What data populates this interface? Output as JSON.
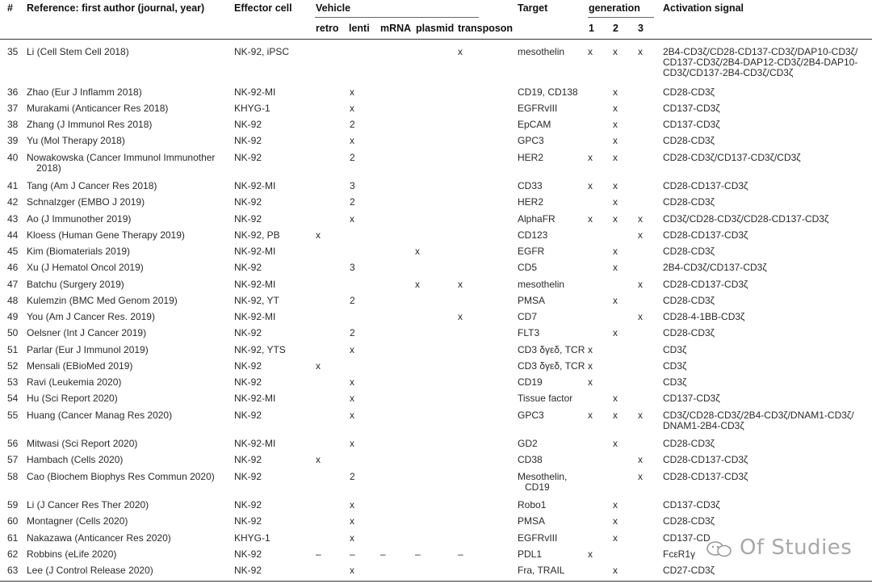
{
  "headers": {
    "num": "#",
    "reference": "Reference: first author (journal, year)",
    "effector": "Effector cell",
    "vehicle": "Vehicle",
    "target": "Target",
    "generation": "generation",
    "activation": "Activation signal",
    "vehicle_sub": [
      "retro",
      "lenti",
      "mRNA",
      "plasmid",
      "transposon"
    ],
    "generation_sub": [
      "1",
      "2",
      "3"
    ]
  },
  "rows": [
    {
      "n": "35",
      "ref": "Li (Cell Stem Cell 2018)",
      "eff": "NK-92, iPSC",
      "retro": "",
      "lenti": "",
      "mrna": "",
      "plasmid": "",
      "transposon": "x",
      "target": "mesothelin",
      "g1": "x",
      "g2": "x",
      "g3": "x",
      "act": "2B4-CD3ζ/CD28-CD137-CD3ζ/DAP10-CD3ζ/ CD137-CD3ζ/2B4-DAP12-CD3ζ/2B4-DAP10- CD3ζ/CD137-2B4-CD3ζ/CD3ζ"
    },
    {
      "n": "36",
      "ref": "Zhao (Eur J Inflamm 2018)",
      "eff": "NK-92-MI",
      "retro": "",
      "lenti": "x",
      "mrna": "",
      "plasmid": "",
      "transposon": "",
      "target": "CD19, CD138",
      "g1": "",
      "g2": "x",
      "g3": "",
      "act": "CD28-CD3ζ"
    },
    {
      "n": "37",
      "ref": "Murakami (Anticancer Res 2018)",
      "eff": "KHYG-1",
      "retro": "",
      "lenti": "x",
      "mrna": "",
      "plasmid": "",
      "transposon": "",
      "target": "EGFRvIII",
      "g1": "",
      "g2": "x",
      "g3": "",
      "act": "CD137-CD3ζ"
    },
    {
      "n": "38",
      "ref": "Zhang (J Immunol Res 2018)",
      "eff": "NK-92",
      "retro": "",
      "lenti": "2",
      "mrna": "",
      "plasmid": "",
      "transposon": "",
      "target": "EpCAM",
      "g1": "",
      "g2": "x",
      "g3": "",
      "act": "CD137-CD3ζ"
    },
    {
      "n": "39",
      "ref": "Yu (Mol Therapy 2018)",
      "eff": "NK-92",
      "retro": "",
      "lenti": "x",
      "mrna": "",
      "plasmid": "",
      "transposon": "",
      "target": "GPC3",
      "g1": "",
      "g2": "x",
      "g3": "",
      "act": "CD28-CD3ζ"
    },
    {
      "n": "40",
      "ref": "Nowakowska (Cancer Immunol Immunother 2018)",
      "eff": "NK-92",
      "retro": "",
      "lenti": "2",
      "mrna": "",
      "plasmid": "",
      "transposon": "",
      "target": "HER2",
      "g1": "x",
      "g2": "x",
      "g3": "",
      "act": "CD28-CD3ζ/CD137-CD3ζ/CD3ζ"
    },
    {
      "n": "41",
      "ref": "Tang (Am J Cancer Res 2018)",
      "eff": "NK-92-MI",
      "retro": "",
      "lenti": "3",
      "mrna": "",
      "plasmid": "",
      "transposon": "",
      "target": "CD33",
      "g1": "x",
      "g2": "x",
      "g3": "",
      "act": "CD28-CD137-CD3ζ"
    },
    {
      "n": "42",
      "ref": "Schnalzger (EMBO J 2019)",
      "eff": "NK-92",
      "retro": "",
      "lenti": "2",
      "mrna": "",
      "plasmid": "",
      "transposon": "",
      "target": "HER2",
      "g1": "",
      "g2": "x",
      "g3": "",
      "act": "CD28-CD3ζ"
    },
    {
      "n": "43",
      "ref": "Ao (J Immunother 2019)",
      "eff": "NK-92",
      "retro": "",
      "lenti": "x",
      "mrna": "",
      "plasmid": "",
      "transposon": "",
      "target": "AlphaFR",
      "g1": "x",
      "g2": "x",
      "g3": "x",
      "act": "CD3ζ/CD28-CD3ζ/CD28-CD137-CD3ζ"
    },
    {
      "n": "44",
      "ref": "Kloess (Human Gene Therapy 2019)",
      "eff": "NK-92, PB",
      "retro": "x",
      "lenti": "",
      "mrna": "",
      "plasmid": "",
      "transposon": "",
      "target": "CD123",
      "g1": "",
      "g2": "",
      "g3": "x",
      "act": "CD28-CD137-CD3ζ"
    },
    {
      "n": "45",
      "ref": "Kim (Biomaterials 2019)",
      "eff": "NK-92-MI",
      "retro": "",
      "lenti": "",
      "mrna": "",
      "plasmid": "x",
      "transposon": "",
      "target": "EGFR",
      "g1": "",
      "g2": "x",
      "g3": "",
      "act": "CD28-CD3ζ"
    },
    {
      "n": "46",
      "ref": "Xu (J Hematol Oncol 2019)",
      "eff": "NK-92",
      "retro": "",
      "lenti": "3",
      "mrna": "",
      "plasmid": "",
      "transposon": "",
      "target": "CD5",
      "g1": "",
      "g2": "x",
      "g3": "",
      "act": "2B4-CD3ζ/CD137-CD3ζ"
    },
    {
      "n": "47",
      "ref": "Batchu (Surgery 2019)",
      "eff": "NK-92-MI",
      "retro": "",
      "lenti": "",
      "mrna": "",
      "plasmid": "x",
      "transposon": "x",
      "target": "mesothelin",
      "g1": "",
      "g2": "",
      "g3": "x",
      "act": "CD28-CD137-CD3ζ"
    },
    {
      "n": "48",
      "ref": "Kulemzin (BMC Med Genom 2019)",
      "eff": "NK-92, YT",
      "retro": "",
      "lenti": "2",
      "mrna": "",
      "plasmid": "",
      "transposon": "",
      "target": "PMSA",
      "g1": "",
      "g2": "x",
      "g3": "",
      "act": "CD28-CD3ζ"
    },
    {
      "n": "49",
      "ref": "You (Am J Cancer Res. 2019)",
      "eff": "NK-92-MI",
      "retro": "",
      "lenti": "",
      "mrna": "",
      "plasmid": "",
      "transposon": "x",
      "target": "CD7",
      "g1": "",
      "g2": "",
      "g3": "x",
      "act": "CD28-4-1BB-CD3ζ"
    },
    {
      "n": "50",
      "ref": "Oelsner (Int J Cancer 2019)",
      "eff": "NK-92",
      "retro": "",
      "lenti": "2",
      "mrna": "",
      "plasmid": "",
      "transposon": "",
      "target": "FLT3",
      "g1": "",
      "g2": "x",
      "g3": "",
      "act": "CD28-CD3ζ"
    },
    {
      "n": "51",
      "ref": "Parlar (Eur J Immunol 2019)",
      "eff": "NK-92, YTS",
      "retro": "",
      "lenti": "x",
      "mrna": "",
      "plasmid": "",
      "transposon": "",
      "target": "CD3 δγεδ, TCR",
      "g1": "x",
      "g2": "",
      "g3": "",
      "act": "CD3ζ"
    },
    {
      "n": "52",
      "ref": "Mensali (EBioMed 2019)",
      "eff": "NK-92",
      "retro": "x",
      "lenti": "",
      "mrna": "",
      "plasmid": "",
      "transposon": "",
      "target": "CD3 δγεδ, TCR",
      "g1": "x",
      "g2": "",
      "g3": "",
      "act": "CD3ζ"
    },
    {
      "n": "53",
      "ref": "Ravi (Leukemia 2020)",
      "eff": "NK-92",
      "retro": "",
      "lenti": "x",
      "mrna": "",
      "plasmid": "",
      "transposon": "",
      "target": "CD19",
      "g1": "x",
      "g2": "",
      "g3": "",
      "act": "CD3ζ"
    },
    {
      "n": "54",
      "ref": "Hu (Sci Report 2020)",
      "eff": "NK-92-MI",
      "retro": "",
      "lenti": "x",
      "mrna": "",
      "plasmid": "",
      "transposon": "",
      "target": "Tissue factor",
      "g1": "",
      "g2": "x",
      "g3": "",
      "act": "CD137-CD3ζ"
    },
    {
      "n": "55",
      "ref": "Huang (Cancer Manag Res 2020)",
      "eff": "NK-92",
      "retro": "",
      "lenti": "x",
      "mrna": "",
      "plasmid": "",
      "transposon": "",
      "target": "GPC3",
      "g1": "x",
      "g2": "x",
      "g3": "x",
      "act": "CD3ζ/CD28-CD3ζ/2B4-CD3ζ/DNAM1-CD3ζ/ DNAM1-2B4-CD3ζ"
    },
    {
      "n": "56",
      "ref": "Mitwasi (Sci Report 2020)",
      "eff": "NK-92-MI",
      "retro": "",
      "lenti": "x",
      "mrna": "",
      "plasmid": "",
      "transposon": "",
      "target": "GD2",
      "g1": "",
      "g2": "x",
      "g3": "",
      "act": "CD28-CD3ζ"
    },
    {
      "n": "57",
      "ref": "Hambach (Cells 2020)",
      "eff": "NK-92",
      "retro": "x",
      "lenti": "",
      "mrna": "",
      "plasmid": "",
      "transposon": "",
      "target": "CD38",
      "g1": "",
      "g2": "",
      "g3": "x",
      "act": "CD28-CD137-CD3ζ"
    },
    {
      "n": "58",
      "ref": "Cao (Biochem Biophys Res Commun 2020)",
      "eff": "NK-92",
      "retro": "",
      "lenti": "2",
      "mrna": "",
      "plasmid": "",
      "transposon": "",
      "target": "Mesothelin, CD19",
      "g1": "",
      "g2": "",
      "g3": "x",
      "act": "CD28-CD137-CD3ζ"
    },
    {
      "n": "59",
      "ref": "Li (J Cancer Res Ther 2020)",
      "eff": "NK-92",
      "retro": "",
      "lenti": "x",
      "mrna": "",
      "plasmid": "",
      "transposon": "",
      "target": "Robo1",
      "g1": "",
      "g2": "x",
      "g3": "",
      "act": "CD137-CD3ζ"
    },
    {
      "n": "60",
      "ref": "Montagner (Cells 2020)",
      "eff": "NK-92",
      "retro": "",
      "lenti": "x",
      "mrna": "",
      "plasmid": "",
      "transposon": "",
      "target": "PMSA",
      "g1": "",
      "g2": "x",
      "g3": "",
      "act": "CD28-CD3ζ"
    },
    {
      "n": "61",
      "ref": "Nakazawa (Anticancer Res 2020)",
      "eff": "KHYG-1",
      "retro": "",
      "lenti": "x",
      "mrna": "",
      "plasmid": "",
      "transposon": "",
      "target": "EGFRvIII",
      "g1": "",
      "g2": "x",
      "g3": "",
      "act": "CD137-CD"
    },
    {
      "n": "62",
      "ref": "Robbins (eLife 2020)",
      "eff": "NK-92",
      "retro": "–",
      "lenti": "–",
      "mrna": "–",
      "plasmid": "–",
      "transposon": "–",
      "target": "PDL1",
      "g1": "x",
      "g2": "",
      "g3": "",
      "act": "FcεR1γ"
    },
    {
      "n": "63",
      "ref": "Lee (J Control Release 2020)",
      "eff": "NK-92",
      "retro": "",
      "lenti": "x",
      "mrna": "",
      "plasmid": "",
      "transposon": "",
      "target": "Fra, TRAIL",
      "g1": "",
      "g2": "x",
      "g3": "",
      "act": "CD27-CD3ζ"
    }
  ],
  "watermark": {
    "text": "Of Studies",
    "icon": "wechat-icon"
  }
}
